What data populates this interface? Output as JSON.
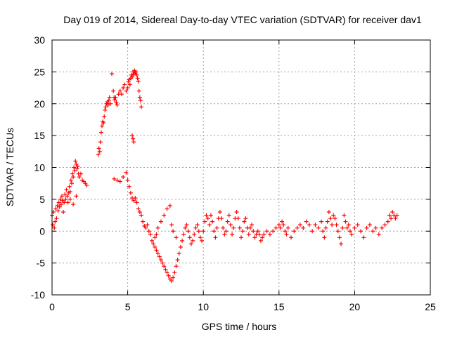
{
  "chart_data": {
    "type": "scatter",
    "title": "Day 019 of 2014, Sidereal Day-to-day VTEC variation (SDTVAR) for receiver dav1",
    "xlabel": "GPS time / hours",
    "ylabel": "SDTVAR / TECUs",
    "xlim": [
      0,
      25
    ],
    "ylim": [
      -10,
      30
    ],
    "xticks": [
      "0",
      "5",
      "10",
      "15",
      "20",
      "25"
    ],
    "yticks": [
      "-10",
      "-5",
      "0",
      "5",
      "10",
      "15",
      "20",
      "25",
      "30"
    ],
    "grid": true,
    "marker": "plus",
    "color": "#ff0000",
    "series": [
      {
        "name": "SDTVAR",
        "points": [
          [
            0.0,
            2.5
          ],
          [
            0.05,
            1.0
          ],
          [
            0.1,
            3.0
          ],
          [
            0.15,
            0.5
          ],
          [
            0.2,
            1.5
          ],
          [
            0.25,
            3.5
          ],
          [
            0.3,
            2.0
          ],
          [
            0.35,
            4.0
          ],
          [
            0.4,
            3.2
          ],
          [
            0.45,
            4.5
          ],
          [
            0.5,
            3.8
          ],
          [
            0.55,
            5.0
          ],
          [
            0.6,
            4.2
          ],
          [
            0.65,
            5.5
          ],
          [
            0.7,
            4.8
          ],
          [
            0.75,
            3.0
          ],
          [
            0.8,
            4.5
          ],
          [
            0.85,
            5.8
          ],
          [
            0.9,
            5.0
          ],
          [
            0.95,
            6.5
          ],
          [
            1.0,
            5.5
          ],
          [
            1.05,
            4.5
          ],
          [
            1.1,
            6.0
          ],
          [
            1.15,
            7.0
          ],
          [
            1.2,
            6.2
          ],
          [
            1.25,
            8.0
          ],
          [
            1.3,
            7.5
          ],
          [
            1.35,
            9.0
          ],
          [
            1.4,
            8.5
          ],
          [
            1.45,
            10.0
          ],
          [
            1.5,
            9.5
          ],
          [
            1.55,
            11.0
          ],
          [
            1.6,
            10.5
          ],
          [
            1.65,
            9.8
          ],
          [
            1.7,
            10.2
          ],
          [
            1.75,
            9.0
          ],
          [
            1.8,
            8.5
          ],
          [
            1.9,
            9.0
          ],
          [
            2.0,
            8.0
          ],
          [
            2.1,
            7.8
          ],
          [
            2.2,
            7.5
          ],
          [
            2.3,
            7.2
          ],
          [
            1.2,
            5.0
          ],
          [
            1.4,
            4.2
          ],
          [
            1.6,
            5.5
          ],
          [
            3.05,
            12.0
          ],
          [
            3.1,
            13.0
          ],
          [
            3.15,
            12.5
          ],
          [
            3.2,
            14.0
          ],
          [
            3.25,
            15.5
          ],
          [
            3.3,
            16.5
          ],
          [
            3.35,
            17.2
          ],
          [
            3.4,
            17.0
          ],
          [
            3.45,
            18.0
          ],
          [
            3.5,
            19.0
          ],
          [
            3.55,
            19.5
          ],
          [
            3.6,
            20.0
          ],
          [
            3.65,
            20.3
          ],
          [
            3.7,
            19.8
          ],
          [
            3.75,
            20.5
          ],
          [
            3.8,
            21.0
          ],
          [
            3.85,
            20.0
          ],
          [
            3.95,
            24.7
          ],
          [
            4.05,
            22.0
          ],
          [
            4.1,
            21.0
          ],
          [
            4.15,
            20.6
          ],
          [
            4.2,
            21.0
          ],
          [
            4.25,
            20.2
          ],
          [
            4.3,
            19.8
          ],
          [
            4.4,
            21.5
          ],
          [
            4.5,
            22.0
          ],
          [
            4.6,
            21.5
          ],
          [
            4.7,
            22.5
          ],
          [
            4.8,
            23.0
          ],
          [
            4.9,
            22.0
          ],
          [
            5.0,
            22.5
          ],
          [
            5.05,
            23.5
          ],
          [
            5.1,
            23.8
          ],
          [
            5.15,
            23.0
          ],
          [
            5.2,
            24.0
          ],
          [
            5.25,
            24.5
          ],
          [
            5.3,
            24.2
          ],
          [
            5.35,
            25.0
          ],
          [
            5.4,
            24.6
          ],
          [
            5.45,
            25.2
          ],
          [
            5.5,
            24.8
          ],
          [
            5.55,
            25.0
          ],
          [
            5.6,
            24.5
          ],
          [
            5.65,
            24.0
          ],
          [
            5.7,
            23.5
          ],
          [
            5.75,
            22.0
          ],
          [
            5.8,
            21.0
          ],
          [
            5.85,
            20.5
          ],
          [
            5.9,
            19.5
          ],
          [
            5.3,
            15.0
          ],
          [
            5.35,
            14.5
          ],
          [
            5.4,
            14.0
          ],
          [
            4.1,
            8.2
          ],
          [
            4.3,
            8.0
          ],
          [
            4.5,
            7.8
          ],
          [
            4.7,
            8.5
          ],
          [
            4.9,
            9.2
          ],
          [
            5.0,
            8.0
          ],
          [
            5.1,
            7.0
          ],
          [
            5.2,
            6.0
          ],
          [
            5.3,
            5.2
          ],
          [
            5.4,
            4.8
          ],
          [
            5.5,
            5.2
          ],
          [
            5.6,
            4.5
          ],
          [
            5.7,
            3.5
          ],
          [
            5.8,
            3.0
          ],
          [
            5.9,
            2.5
          ],
          [
            6.0,
            1.5
          ],
          [
            6.1,
            0.8
          ],
          [
            6.2,
            0.5
          ],
          [
            6.3,
            1.0
          ],
          [
            6.4,
            0.0
          ],
          [
            6.5,
            -0.5
          ],
          [
            6.6,
            -1.5
          ],
          [
            6.7,
            -2.0
          ],
          [
            6.8,
            -2.5
          ],
          [
            6.9,
            -3.0
          ],
          [
            7.0,
            -3.5
          ],
          [
            7.1,
            -4.0
          ],
          [
            7.2,
            -4.5
          ],
          [
            7.3,
            -5.0
          ],
          [
            7.4,
            -5.5
          ],
          [
            7.5,
            -6.0
          ],
          [
            7.6,
            -6.5
          ],
          [
            7.7,
            -7.0
          ],
          [
            7.8,
            -7.5
          ],
          [
            7.9,
            -7.8
          ],
          [
            8.0,
            -7.3
          ],
          [
            8.1,
            -6.5
          ],
          [
            8.2,
            -5.5
          ],
          [
            8.3,
            -4.5
          ],
          [
            8.4,
            -3.5
          ],
          [
            8.5,
            -2.5
          ],
          [
            8.6,
            -1.5
          ],
          [
            8.7,
            -0.5
          ],
          [
            8.8,
            0.5
          ],
          [
            8.9,
            1.0
          ],
          [
            9.0,
            0.0
          ],
          [
            9.1,
            -1.0
          ],
          [
            9.2,
            -2.0
          ],
          [
            9.3,
            -1.5
          ],
          [
            9.4,
            -0.5
          ],
          [
            9.5,
            0.5
          ],
          [
            9.6,
            1.0
          ],
          [
            9.7,
            0.0
          ],
          [
            9.8,
            -1.0
          ],
          [
            9.9,
            -1.5
          ],
          [
            10.0,
            0.0
          ],
          [
            10.1,
            1.5
          ],
          [
            10.2,
            2.5
          ],
          [
            10.3,
            2.0
          ],
          [
            10.4,
            1.0
          ],
          [
            10.5,
            2.5
          ],
          [
            10.6,
            1.5
          ],
          [
            10.7,
            0.0
          ],
          [
            10.8,
            -1.0
          ],
          [
            10.9,
            0.5
          ],
          [
            11.0,
            2.0
          ],
          [
            11.1,
            3.0
          ],
          [
            11.2,
            2.0
          ],
          [
            11.3,
            0.5
          ],
          [
            11.4,
            -0.5
          ],
          [
            11.5,
            0.0
          ],
          [
            11.6,
            1.5
          ],
          [
            11.7,
            2.5
          ],
          [
            11.8,
            1.0
          ],
          [
            11.9,
            -0.5
          ],
          [
            12.0,
            0.5
          ],
          [
            12.1,
            2.0
          ],
          [
            12.2,
            3.0
          ],
          [
            12.3,
            2.0
          ],
          [
            12.4,
            0.5
          ],
          [
            12.5,
            -1.0
          ],
          [
            12.6,
            0.0
          ],
          [
            12.7,
            1.5
          ],
          [
            12.8,
            2.0
          ],
          [
            12.9,
            0.5
          ],
          [
            13.0,
            -0.5
          ],
          [
            13.1,
            0.5
          ],
          [
            13.2,
            1.0
          ],
          [
            13.3,
            0.0
          ],
          [
            13.4,
            -1.0
          ],
          [
            13.5,
            -0.5
          ],
          [
            13.6,
            0.0
          ],
          [
            13.7,
            -0.5
          ],
          [
            13.8,
            -1.5
          ],
          [
            13.9,
            -1.0
          ],
          [
            14.0,
            -0.5
          ],
          [
            14.2,
            0.0
          ],
          [
            14.4,
            -0.5
          ],
          [
            14.6,
            0.0
          ],
          [
            14.8,
            0.5
          ],
          [
            15.0,
            1.0
          ],
          [
            15.1,
            0.5
          ],
          [
            15.2,
            1.5
          ],
          [
            15.3,
            1.0
          ],
          [
            15.4,
            0.0
          ],
          [
            15.5,
            -0.5
          ],
          [
            15.6,
            0.5
          ],
          [
            15.8,
            -1.0
          ],
          [
            16.0,
            0.0
          ],
          [
            16.2,
            0.5
          ],
          [
            16.4,
            1.0
          ],
          [
            16.6,
            0.5
          ],
          [
            16.8,
            1.5
          ],
          [
            17.0,
            1.0
          ],
          [
            17.2,
            0.0
          ],
          [
            17.4,
            1.0
          ],
          [
            17.6,
            0.5
          ],
          [
            17.8,
            1.5
          ],
          [
            17.9,
            0.0
          ],
          [
            18.0,
            -1.0
          ],
          [
            18.1,
            0.5
          ],
          [
            18.2,
            1.5
          ],
          [
            18.3,
            3.0
          ],
          [
            18.4,
            2.0
          ],
          [
            18.5,
            1.0
          ],
          [
            18.6,
            2.5
          ],
          [
            18.7,
            2.0
          ],
          [
            18.8,
            1.0
          ],
          [
            18.9,
            0.0
          ],
          [
            19.0,
            -1.0
          ],
          [
            19.1,
            -2.0
          ],
          [
            19.2,
            0.5
          ],
          [
            19.3,
            2.5
          ],
          [
            19.4,
            1.5
          ],
          [
            19.5,
            0.5
          ],
          [
            19.6,
            1.0
          ],
          [
            19.7,
            0.0
          ],
          [
            19.8,
            -0.5
          ],
          [
            20.0,
            0.5
          ],
          [
            20.2,
            1.0
          ],
          [
            20.4,
            0.0
          ],
          [
            20.6,
            -1.0
          ],
          [
            20.8,
            0.5
          ],
          [
            21.0,
            1.0
          ],
          [
            21.2,
            0.0
          ],
          [
            21.4,
            0.5
          ],
          [
            21.6,
            -0.5
          ],
          [
            21.8,
            0.5
          ],
          [
            22.0,
            1.0
          ],
          [
            22.2,
            1.5
          ],
          [
            22.3,
            2.5
          ],
          [
            22.4,
            2.0
          ],
          [
            22.5,
            3.0
          ],
          [
            22.6,
            2.5
          ],
          [
            22.7,
            2.0
          ],
          [
            22.8,
            2.5
          ],
          [
            7.8,
            4.0
          ],
          [
            7.6,
            3.5
          ],
          [
            7.4,
            2.5
          ],
          [
            7.2,
            1.5
          ],
          [
            7.0,
            0.5
          ],
          [
            6.9,
            -0.5
          ],
          [
            6.8,
            -1.0
          ],
          [
            7.9,
            1.0
          ],
          [
            8.0,
            0.0
          ],
          [
            8.2,
            -1.0
          ]
        ]
      }
    ]
  }
}
